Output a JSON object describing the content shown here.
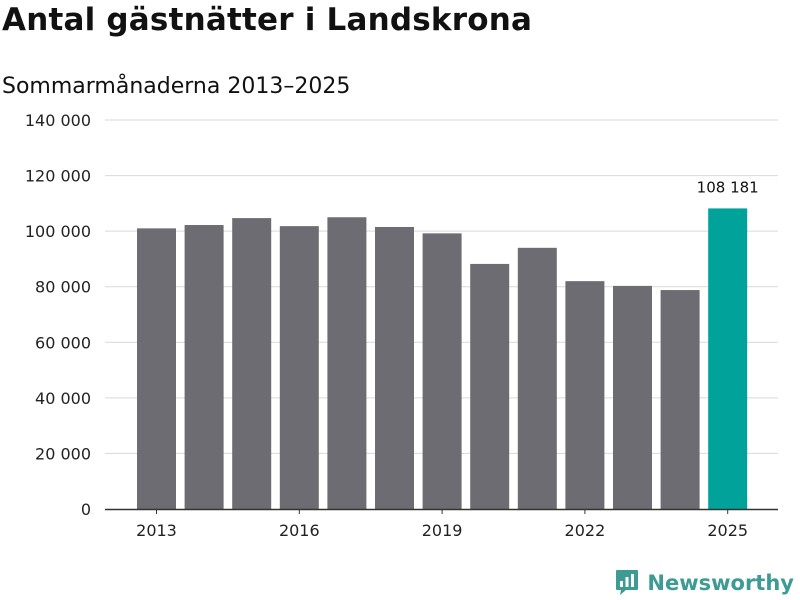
{
  "header": {
    "title": "Antal gästnätter i Landskrona",
    "subtitle": "Sommarmånaderna 2013–2025"
  },
  "brand": {
    "name": "Newsworthy",
    "icon": "newsworthy-logo-icon",
    "color": "#3d9b94"
  },
  "colors": {
    "bar": "#6d6c72",
    "highlight": "#00a29a",
    "grid": "#d9d9d9",
    "axis": "#333333"
  },
  "chart_data": {
    "type": "bar",
    "title": "Antal gästnätter i Landskrona",
    "subtitle": "Sommarmånaderna 2013–2025",
    "categories": [
      "2013",
      "2014",
      "2015",
      "2016",
      "2017",
      "2018",
      "2019",
      "2020",
      "2021",
      "2022",
      "2023",
      "2024",
      "2025"
    ],
    "values": [
      101000,
      102200,
      104700,
      101800,
      105000,
      101500,
      99200,
      88200,
      94000,
      82000,
      80300,
      78800,
      108181
    ],
    "highlight_index": 12,
    "x_tick_labels": [
      "2013",
      "2016",
      "2019",
      "2022",
      "2025"
    ],
    "y_ticks": [
      0,
      20000,
      40000,
      60000,
      80000,
      100000,
      120000,
      140000
    ],
    "y_tick_labels": [
      "0",
      "20 000",
      "40 000",
      "60 000",
      "80 000",
      "100 000",
      "120 000",
      "140 000"
    ],
    "ylim": [
      0,
      140000
    ],
    "data_labels": [
      {
        "index": 12,
        "text": "108 181"
      }
    ],
    "grid": true,
    "xlabel": "",
    "ylabel": ""
  }
}
